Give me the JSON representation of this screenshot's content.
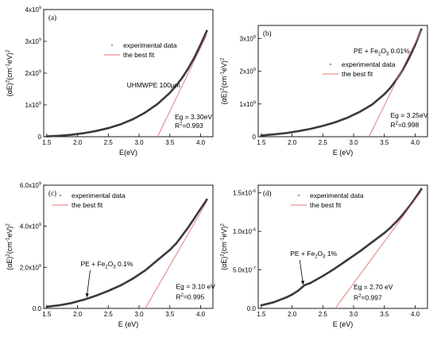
{
  "chart_data": [
    {
      "type": "line",
      "panel_label": "(a)",
      "xlabel": "E(eV)",
      "ylabel": "(αE)^2(cm^-1eV)^2",
      "xlim": [
        1.45,
        4.2
      ],
      "ylim": [
        0,
        4000000000.0
      ],
      "x_ticks": [
        1.5,
        2.0,
        2.5,
        3.0,
        3.5,
        4.0
      ],
      "x_tick_labels": [
        "1.5",
        "2.0",
        "2.5",
        "3.0",
        "3.5",
        "4.0"
      ],
      "y_ticks": [
        0,
        1000000000.0,
        2000000000.0,
        3000000000.0,
        4000000000.0
      ],
      "y_tick_labels": [
        "0",
        "1x10^9",
        "2x10^9",
        "3x10^9",
        "4x10^9"
      ],
      "legend": {
        "position": "top-center",
        "entries": [
          "experimental data",
          "the best fit"
        ]
      },
      "annotations": [
        {
          "text": "UHMWPE 100μm",
          "x": 2.8,
          "y": 1550000000.0
        },
        {
          "text": "Eg = 3.30eV",
          "x": 3.58,
          "y": 550000000.0
        },
        {
          "text": "R^2=0.993",
          "x": 3.58,
          "y": 280000000.0
        }
      ],
      "series": [
        {
          "name": "experimental data",
          "style": "scatter",
          "color": "#3a3a3a",
          "x": [
            1.5,
            1.7,
            1.9,
            2.1,
            2.3,
            2.5,
            2.7,
            2.9,
            3.1,
            3.3,
            3.5,
            3.6,
            3.7,
            3.8,
            3.9,
            4.0,
            4.1
          ],
          "y": [
            10000000.0,
            30000000.0,
            60000000.0,
            110000000.0,
            180000000.0,
            270000000.0,
            390000000.0,
            550000000.0,
            760000000.0,
            1030000000.0,
            1380000000.0,
            1600000000.0,
            1850000000.0,
            2150000000.0,
            2500000000.0,
            2900000000.0,
            3330000000.0
          ]
        },
        {
          "name": "the best fit",
          "style": "line",
          "color": "#e8706f",
          "x": [
            3.3,
            4.1
          ],
          "y": [
            0,
            3200000000.0
          ]
        }
      ]
    },
    {
      "type": "line",
      "panel_label": "(b)",
      "xlabel": "E (eV)",
      "ylabel": "(αE)^2(cm^-1eV)^2",
      "xlim": [
        1.45,
        4.2
      ],
      "ylim": [
        0,
        3400000000.0
      ],
      "x_ticks": [
        1.5,
        2.0,
        2.5,
        3.0,
        3.5,
        4.0
      ],
      "x_tick_labels": [
        "1.5",
        "2.0",
        "2.5",
        "3.0",
        "3.5",
        "4.0"
      ],
      "y_ticks": [
        0,
        1000000000.0,
        2000000000.0,
        3000000000.0
      ],
      "y_tick_labels": [
        "0",
        "1x10^9",
        "2x10^9",
        "3x10^9"
      ],
      "legend": {
        "position": "center",
        "entries": [
          "experimental data",
          "the best fit"
        ]
      },
      "annotations": [
        {
          "text": "PE + Fe2O3 0.01%",
          "x": 3.0,
          "y": 2550000000.0
        },
        {
          "text": "Eg = 3.25eV",
          "x": 3.6,
          "y": 580000000.0
        },
        {
          "text": "R^2=0.998",
          "x": 3.6,
          "y": 290000000.0
        }
      ],
      "series": [
        {
          "name": "experimental data",
          "style": "scatter",
          "color": "#3a3a3a",
          "x": [
            1.5,
            1.7,
            1.9,
            2.1,
            2.3,
            2.5,
            2.7,
            2.9,
            3.1,
            3.3,
            3.5,
            3.6,
            3.7,
            3.8,
            3.9,
            4.0,
            4.1
          ],
          "y": [
            40000000.0,
            70000000.0,
            110000000.0,
            170000000.0,
            240000000.0,
            330000000.0,
            440000000.0,
            580000000.0,
            760000000.0,
            980000000.0,
            1300000000.0,
            1500000000.0,
            1750000000.0,
            2050000000.0,
            2400000000.0,
            2800000000.0,
            3280000000.0
          ]
        },
        {
          "name": "the best fit",
          "style": "line",
          "color": "#e8706f",
          "x": [
            3.25,
            4.1
          ],
          "y": [
            0,
            3250000000.0
          ]
        }
      ]
    },
    {
      "type": "line",
      "panel_label": "(c)",
      "xlabel": "E (eV)",
      "ylabel": "(αE)^2(cm^-1eV)^2",
      "xlim": [
        1.45,
        4.2
      ],
      "ylim": [
        0,
        6000000000.0
      ],
      "x_ticks": [
        1.5,
        2.0,
        2.5,
        3.0,
        3.5,
        4.0
      ],
      "x_tick_labels": [
        "1.5",
        "2.0",
        "2.5",
        "3.0",
        "3.5",
        "4.0"
      ],
      "y_ticks": [
        0,
        2000000000.0,
        4000000000.0,
        6000000000.0
      ],
      "y_tick_labels": [
        "0.0",
        "2.0x10^9",
        "4.0x10^9",
        "6.0x10^9"
      ],
      "legend": {
        "position": "top-left",
        "entries": [
          "experimental data",
          "the best fit"
        ]
      },
      "annotations": [
        {
          "text": "PE + Fe2O3 0.1%",
          "x": 2.05,
          "y": 2050000000.0,
          "arrow_to": {
            "x": 2.15,
            "y": 550000000.0
          }
        },
        {
          "text": "Eg = 3.10 eV",
          "x": 3.6,
          "y": 950000000.0
        },
        {
          "text": "R^2=0.995",
          "x": 3.6,
          "y": 450000000.0
        }
      ],
      "series": [
        {
          "name": "experimental data",
          "style": "scatter",
          "color": "#3a3a3a",
          "x": [
            1.5,
            1.7,
            1.9,
            2.1,
            2.2,
            2.3,
            2.5,
            2.7,
            2.9,
            3.1,
            3.3,
            3.5,
            3.6,
            3.7,
            3.8,
            3.9,
            4.0,
            4.1
          ],
          "y": [
            80000000.0,
            150000000.0,
            260000000.0,
            420000000.0,
            520000000.0,
            620000000.0,
            850000000.0,
            1120000000.0,
            1450000000.0,
            1850000000.0,
            2350000000.0,
            2850000000.0,
            3150000000.0,
            3550000000.0,
            3950000000.0,
            4400000000.0,
            4850000000.0,
            5300000000.0
          ]
        },
        {
          "name": "the best fit",
          "style": "line",
          "color": "#e8706f",
          "x": [
            3.1,
            4.1
          ],
          "y": [
            0,
            5200000000.0
          ]
        }
      ]
    },
    {
      "type": "line",
      "panel_label": "(d)",
      "xlabel": "E (eV)",
      "ylabel": "(αE)^2(cm^-1eV)^2",
      "xlim": [
        1.45,
        4.2
      ],
      "ylim": [
        0,
        1.6e-06
      ],
      "x_ticks": [
        1.5,
        2.0,
        2.5,
        3.0,
        3.5,
        4.0
      ],
      "x_tick_labels": [
        "1.5",
        "2.0",
        "2.5",
        "3.0",
        "3.5",
        "4.0"
      ],
      "y_ticks": [
        0,
        5e-07,
        1e-06,
        1.5e-06
      ],
      "y_tick_labels": [
        "0.0",
        "5.0x10^-7",
        "1.0x10^-6",
        "1.5x10^-6"
      ],
      "legend": {
        "position": "top-center",
        "entries": [
          "experimental data",
          "the best fit"
        ]
      },
      "annotations": [
        {
          "text": "PE + Fe2O3 1%",
          "x": 1.97,
          "y": 6.8e-07,
          "arrow_to": {
            "x": 2.18,
            "y": 3.1e-07
          }
        },
        {
          "text": "Eg = 2.70 eV",
          "x": 3.0,
          "y": 2.5e-07
        },
        {
          "text": "R^2=0.997",
          "x": 3.0,
          "y": 1.1e-07
        }
      ],
      "series": [
        {
          "name": "experimental data",
          "style": "scatter",
          "color": "#3a3a3a",
          "x": [
            1.5,
            1.7,
            1.9,
            2.0,
            2.1,
            2.2,
            2.3,
            2.5,
            2.7,
            2.9,
            3.1,
            3.3,
            3.5,
            3.6,
            3.7,
            3.8,
            3.9,
            4.0,
            4.1
          ],
          "y": [
            4e-08,
            8e-08,
            1.4e-07,
            1.8e-07,
            2.3e-07,
            3e-07,
            3.3e-07,
            4.2e-07,
            5.2e-07,
            6.3e-07,
            7.4e-07,
            8.6e-07,
            9.8e-07,
            1.05e-06,
            1.13e-06,
            1.22e-06,
            1.32e-06,
            1.43e-06,
            1.55e-06
          ]
        },
        {
          "name": "the best fit",
          "style": "line",
          "color": "#e8706f",
          "x": [
            2.7,
            4.1
          ],
          "y": [
            0,
            1.52e-06
          ]
        }
      ]
    }
  ]
}
